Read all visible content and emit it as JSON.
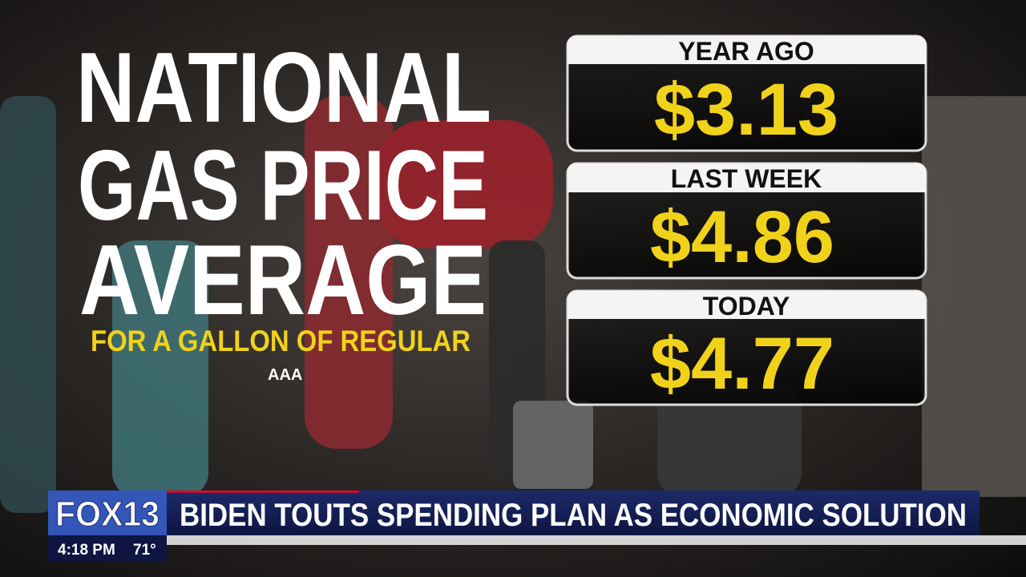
{
  "graphic": {
    "title_lines": [
      "NATIONAL",
      "GAS PRICE",
      "AVERAGE"
    ],
    "subtitle": "FOR A GALLON OF REGULAR",
    "source": "AAA",
    "cards": [
      {
        "label": "YEAR AGO",
        "value": "$3.13"
      },
      {
        "label": "LAST WEEK",
        "value": "$4.86"
      },
      {
        "label": "TODAY",
        "value": "$4.77"
      }
    ]
  },
  "lower_third": {
    "logo": "FOX13",
    "headline": "BIDEN TOUTS SPENDING PLAN AS ECONOMIC SOLUTION",
    "time": "4:18 PM",
    "temperature": "71°"
  }
}
